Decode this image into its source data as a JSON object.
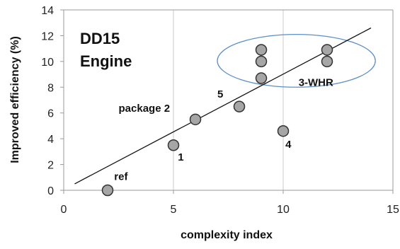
{
  "chart_data": {
    "type": "scatter",
    "title_lines": [
      "DD15",
      "Engine"
    ],
    "xlabel": "complexity index",
    "ylabel": "Improved efficiency (%)",
    "xlim": [
      0,
      15
    ],
    "ylim": [
      0,
      14
    ],
    "x_ticks": [
      "0",
      "5",
      "10",
      "15"
    ],
    "y_ticks": [
      "0",
      "2",
      "4",
      "6",
      "8",
      "10",
      "12",
      "14"
    ],
    "grid": "vertical",
    "points": [
      {
        "x": 2,
        "y": 0
      },
      {
        "x": 5,
        "y": 3.5
      },
      {
        "x": 6,
        "y": 5.5
      },
      {
        "x": 8,
        "y": 6.5
      },
      {
        "x": 9,
        "y": 8.7
      },
      {
        "x": 9,
        "y": 10
      },
      {
        "x": 9,
        "y": 10.9
      },
      {
        "x": 10,
        "y": 4.6
      },
      {
        "x": 12,
        "y": 10
      },
      {
        "x": 12,
        "y": 10.9
      }
    ],
    "trendline": {
      "x": [
        0.5,
        14
      ],
      "y": [
        0.5,
        12.6
      ]
    },
    "annotations": [
      {
        "text": "ref",
        "x": 2.3,
        "y": 0.8
      },
      {
        "text": "1",
        "x": 5.2,
        "y": 2.3
      },
      {
        "text": "package 2",
        "x": 2.5,
        "y": 6.1
      },
      {
        "text": "5",
        "x": 7.0,
        "y": 7.2
      },
      {
        "text": "4",
        "x": 10.1,
        "y": 3.3
      },
      {
        "text": "3-WHR",
        "x": 10.7,
        "y": 8.1
      }
    ],
    "highlight_ellipse": {
      "cx": 10.6,
      "cy": 10.05,
      "rx": 3.6,
      "ry": 2.05
    },
    "colors": {
      "marker_fill": "#a6a6a6",
      "marker_stroke": "#333333",
      "trendline": "#111111",
      "ellipse": "#5b8fc7",
      "grid": "#c8c8c8",
      "axis": "#9a9a9a"
    }
  }
}
